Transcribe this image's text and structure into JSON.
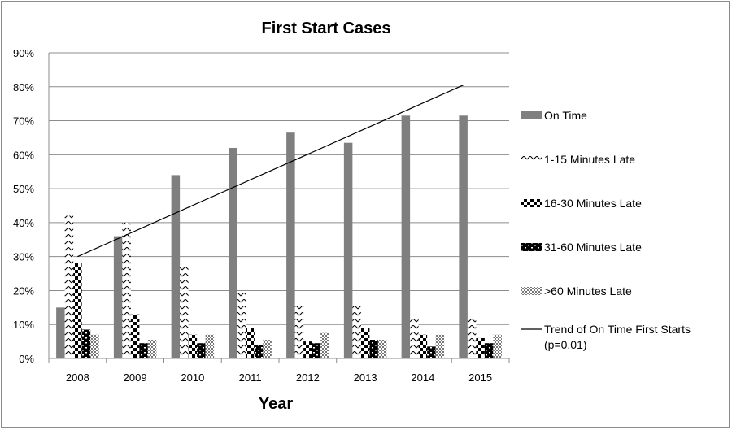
{
  "chart_data": {
    "type": "bar",
    "title": "First Start Cases",
    "xlabel": "Year",
    "ylabel": "",
    "ylim": [
      0,
      0.9
    ],
    "yticks": [
      "0%",
      "10%",
      "20%",
      "30%",
      "40%",
      "50%",
      "60%",
      "70%",
      "80%",
      "90%"
    ],
    "categories": [
      "2008",
      "2009",
      "2010",
      "2011",
      "2012",
      "2013",
      "2014",
      "2015"
    ],
    "grid": true,
    "legend_position": "right",
    "series": [
      {
        "name": "On Time",
        "pattern": "solid-gray",
        "color": "#7f7f7f",
        "values": [
          0.15,
          0.36,
          0.54,
          0.62,
          0.665,
          0.635,
          0.715,
          0.715
        ]
      },
      {
        "name": "1-15 Minutes Late",
        "pattern": "zigzag",
        "color": "#000000",
        "values": [
          0.42,
          0.4,
          0.275,
          0.195,
          0.16,
          0.16,
          0.115,
          0.115
        ]
      },
      {
        "name": "16-30 Minutes Late",
        "pattern": "large-checker",
        "color": "#000000",
        "values": [
          0.28,
          0.13,
          0.07,
          0.09,
          0.05,
          0.09,
          0.07,
          0.06
        ]
      },
      {
        "name": "31-60 Minutes Late",
        "pattern": "brick",
        "color": "#000000",
        "values": [
          0.085,
          0.045,
          0.045,
          0.04,
          0.045,
          0.055,
          0.035,
          0.045
        ]
      },
      {
        "name": ">60 Minutes Late",
        "pattern": "small-checker",
        "color": "#555555",
        "values": [
          0.07,
          0.055,
          0.07,
          0.055,
          0.075,
          0.055,
          0.07,
          0.07
        ]
      }
    ],
    "trendline": {
      "name": "Trend of On Time First Starts",
      "name_line2": "(p=0.01)",
      "start": {
        "x": "2008",
        "y": 0.3
      },
      "end": {
        "x": "2015",
        "y": 0.805
      }
    }
  }
}
